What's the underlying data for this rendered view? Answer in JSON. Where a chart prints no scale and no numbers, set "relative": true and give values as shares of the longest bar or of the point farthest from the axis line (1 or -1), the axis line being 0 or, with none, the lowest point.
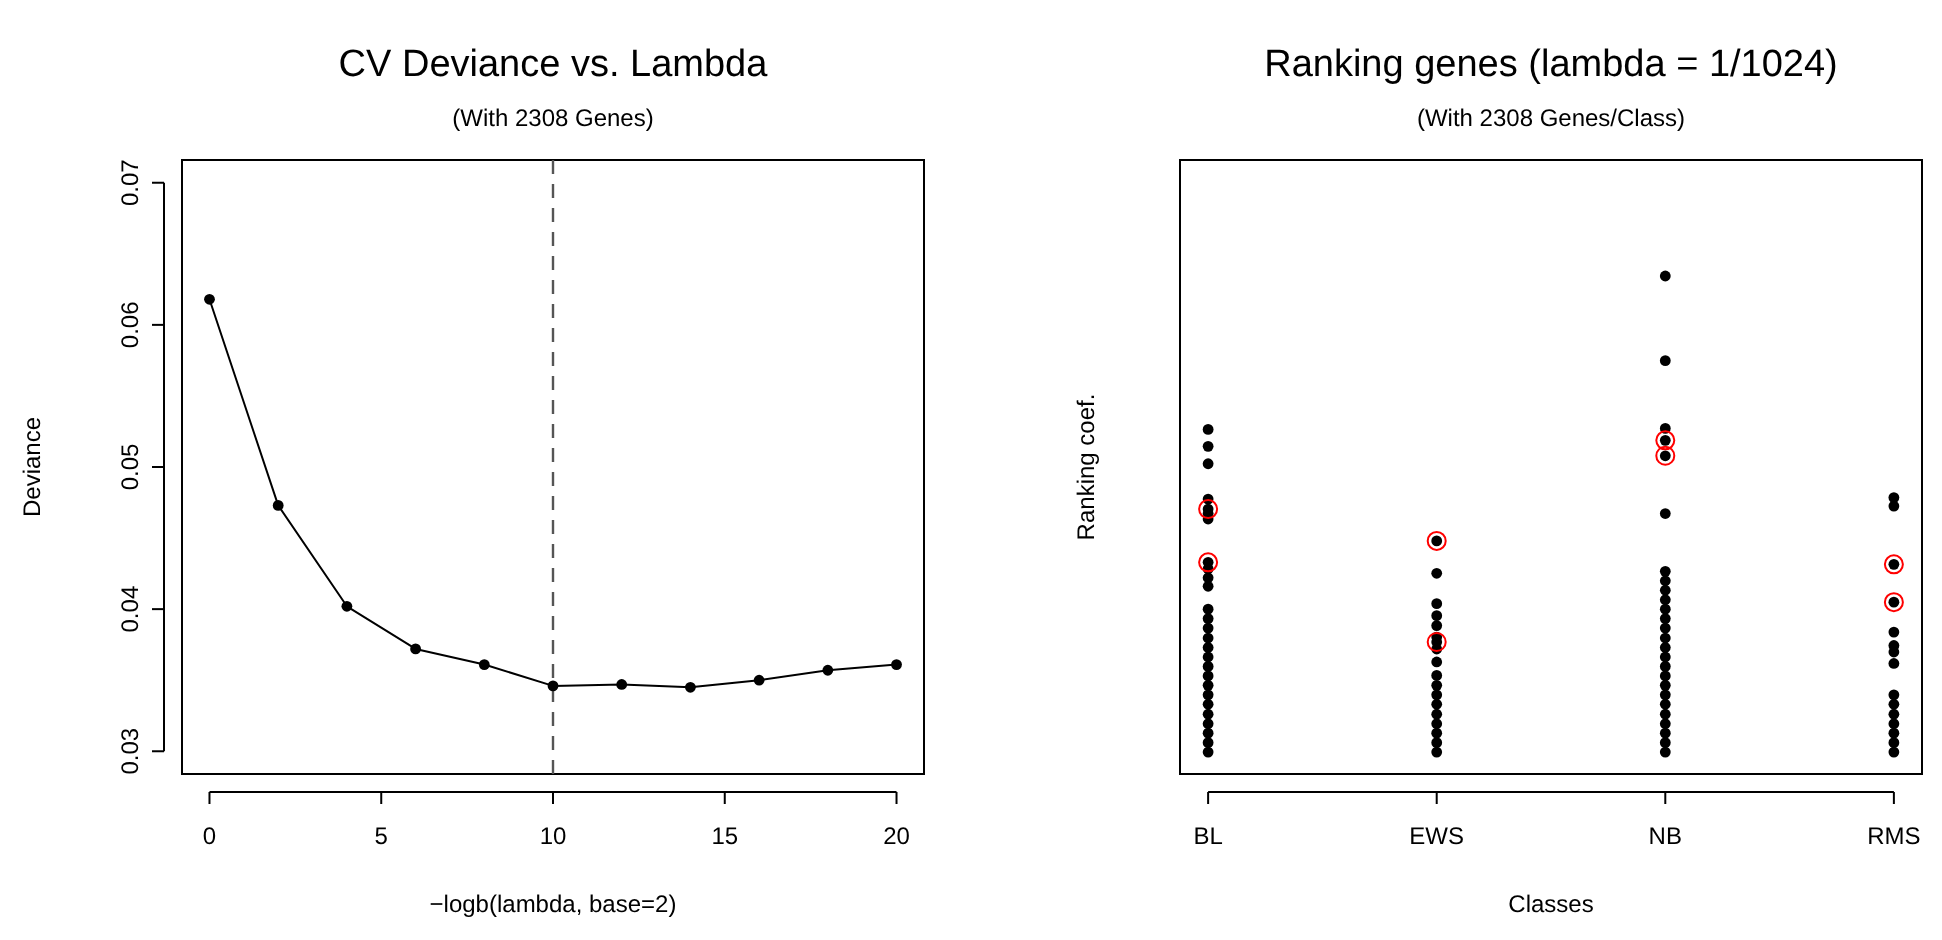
{
  "chart_data": [
    {
      "type": "line",
      "title": "CV Deviance vs. Lambda",
      "subtitle": "(With 2308 Genes)",
      "xlabel": "−logb(lambda, base=2)",
      "ylabel": "Deviance",
      "x": [
        0,
        2,
        4,
        6,
        8,
        10,
        12,
        14,
        16,
        18,
        20
      ],
      "values": [
        0.0618,
        0.0473,
        0.0402,
        0.0372,
        0.0361,
        0.0346,
        0.0347,
        0.0345,
        0.035,
        0.0357,
        0.0361
      ],
      "color": "#000000",
      "marker": "circle",
      "line_style": "solid",
      "xlim": [
        -0.8,
        20.8
      ],
      "ylim": [
        0.0284,
        0.0716
      ],
      "xticks": [
        0,
        5,
        10,
        15,
        20
      ],
      "yticks": [
        {
          "value": 0.03,
          "label": "0.03"
        },
        {
          "value": 0.04,
          "label": "0.04"
        },
        {
          "value": 0.05,
          "label": "0.05"
        },
        {
          "value": 0.06,
          "label": "0.06"
        },
        {
          "value": 0.07,
          "label": "0.07"
        }
      ],
      "ref_lines": [
        {
          "axis": "x",
          "value": 10,
          "color": "#555555",
          "line_style": "dashed"
        }
      ]
    },
    {
      "type": "scatter",
      "title": "Ranking genes (lambda = 1/1024)",
      "subtitle": "(With 2308 Genes/Class)",
      "xlabel": "Classes",
      "ylabel": "Ranking coef.",
      "categories": [
        "BL",
        "EWS",
        "NB",
        "RMS"
      ],
      "relative": true,
      "tick_labels": "x",
      "marker": "circle",
      "series": [
        {
          "color": "#000000",
          "x": [
            "BL",
            "BL",
            "BL",
            "BL",
            "BL",
            "BL",
            "BL",
            "BL",
            "BL",
            "BL",
            "BL",
            "BL",
            "BL",
            "BL",
            "BL",
            "BL",
            "BL",
            "BL",
            "BL",
            "BL",
            "BL",
            "BL",
            "BL",
            "BL",
            "BL",
            "BL",
            "BL",
            "EWS",
            "EWS",
            "EWS",
            "EWS",
            "EWS",
            "EWS",
            "EWS",
            "EWS",
            "EWS",
            "EWS",
            "EWS",
            "EWS",
            "EWS",
            "EWS",
            "EWS",
            "EWS",
            "EWS",
            "EWS",
            "NB",
            "NB",
            "NB",
            "NB",
            "NB",
            "NB",
            "NB",
            "NB",
            "NB",
            "NB",
            "NB",
            "NB",
            "NB",
            "NB",
            "NB",
            "NB",
            "NB",
            "NB",
            "NB",
            "NB",
            "NB",
            "NB",
            "NB",
            "NB",
            "NB",
            "NB",
            "RMS",
            "RMS",
            "RMS",
            "RMS",
            "RMS",
            "RMS",
            "RMS",
            "RMS",
            "RMS",
            "RMS",
            "RMS",
            "RMS",
            "RMS",
            "RMS",
            "RMS"
          ],
          "values": [
            0.692,
            0.658,
            0.623,
            0.552,
            0.532,
            0.523,
            0.512,
            0.425,
            0.412,
            0.394,
            0.377,
            0.331,
            0.312,
            0.293,
            0.273,
            0.254,
            0.235,
            0.216,
            0.197,
            0.178,
            0.159,
            0.14,
            0.12,
            0.101,
            0.082,
            0.063,
            0.044,
            0.468,
            0.403,
            0.342,
            0.318,
            0.298,
            0.275,
            0.265,
            0.251,
            0.225,
            0.198,
            0.178,
            0.159,
            0.14,
            0.12,
            0.101,
            0.082,
            0.063,
            0.044,
            1,
            0.83,
            0.694,
            0.67,
            0.639,
            0.523,
            0.407,
            0.388,
            0.369,
            0.35,
            0.331,
            0.312,
            0.293,
            0.273,
            0.254,
            0.235,
            0.216,
            0.197,
            0.178,
            0.159,
            0.14,
            0.12,
            0.101,
            0.082,
            0.063,
            0.044,
            0.555,
            0.538,
            0.421,
            0.345,
            0.285,
            0.258,
            0.245,
            0.222,
            0.159,
            0.14,
            0.12,
            0.101,
            0.082,
            0.063,
            0.044
          ]
        },
        {
          "color": "#ff0000",
          "x": [
            "BL",
            "BL",
            "EWS",
            "EWS",
            "NB",
            "NB",
            "RMS",
            "RMS"
          ],
          "values": [
            0.532,
            0.425,
            0.468,
            0.265,
            0.67,
            0.639,
            0.421,
            0.345
          ]
        }
      ]
    }
  ]
}
